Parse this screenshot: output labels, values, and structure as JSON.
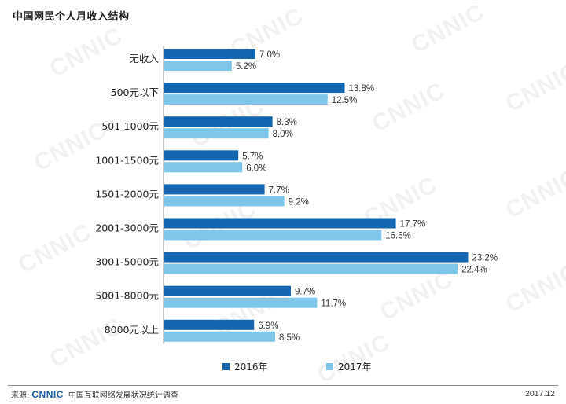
{
  "title": "中国网民个人月收入结构",
  "watermark_text": "CNNIC",
  "colors": {
    "series_2016": "#1566b0",
    "series_2017": "#7ec6ea"
  },
  "chart_data": {
    "type": "bar",
    "orientation": "horizontal",
    "categories": [
      "无收入",
      "500元以下",
      "501-1000元",
      "1001-1500元",
      "1501-2000元",
      "2001-3000元",
      "3001-5000元",
      "5001-8000元",
      "8000元以上"
    ],
    "series": [
      {
        "name": "2016年",
        "values": [
          7.0,
          13.8,
          8.3,
          5.7,
          7.7,
          17.7,
          23.2,
          9.7,
          6.9
        ]
      },
      {
        "name": "2017年",
        "values": [
          5.2,
          12.5,
          8.0,
          6.0,
          9.2,
          16.6,
          22.4,
          11.7,
          8.5
        ]
      }
    ],
    "value_labels": [
      [
        "7.0%",
        "13.8%",
        "8.3%",
        "5.7%",
        "7.7%",
        "17.7%",
        "23.2%",
        "9.7%",
        "6.9%"
      ],
      [
        "5.2%",
        "12.5%",
        "8.0%",
        "6.0%",
        "9.2%",
        "16.6%",
        "22.4%",
        "11.7%",
        "8.5%"
      ]
    ],
    "unit": "%",
    "legend_position": "bottom",
    "grid": false
  },
  "legend": {
    "item_2016": "2016年",
    "item_2017": "2017年"
  },
  "footer": {
    "source_prefix": "来源:",
    "brand": "CNNIC",
    "source_text": "中国互联网络发展状况统计调查",
    "date": "2017.12"
  }
}
